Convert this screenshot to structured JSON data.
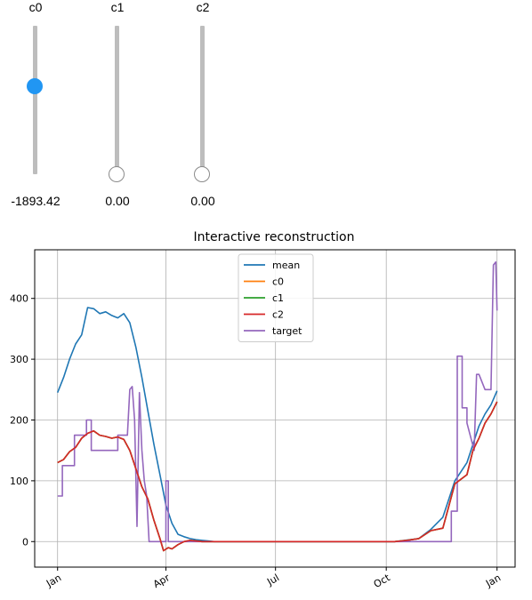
{
  "sliders": [
    {
      "name": "c0",
      "value_text": "-1893.42",
      "level": 0.59
    },
    {
      "name": "c1",
      "value_text": "0.00",
      "level": 0.0
    },
    {
      "name": "c2",
      "value_text": "0.00",
      "level": 0.0
    }
  ],
  "colors": {
    "mean": "#1f77b4",
    "c0": "#ff7f0e",
    "c1": "#2ca02c",
    "c2": "#d62728",
    "target": "#9467bd",
    "grid": "#b0b0b0",
    "knob_active": "#2196f3"
  },
  "chart_data": {
    "type": "line",
    "title": "Interactive reconstruction",
    "xlabel": "",
    "ylabel": "",
    "x_tick_labels": [
      "Jan",
      "Apr",
      "Jul",
      "Oct",
      "Jan"
    ],
    "x_tick_positions": [
      0,
      90,
      181,
      273,
      365
    ],
    "xlim": [
      -19,
      380
    ],
    "ylim": [
      -42,
      480
    ],
    "y_ticks": [
      0,
      100,
      200,
      300,
      400
    ],
    "grid": true,
    "legend_position": "top-center",
    "series": [
      {
        "name": "mean",
        "x": [
          0,
          5,
          10,
          15,
          20,
          25,
          30,
          35,
          40,
          45,
          50,
          55,
          60,
          65,
          70,
          75,
          80,
          85,
          90,
          95,
          100,
          105,
          110,
          115,
          120,
          125,
          130,
          180,
          280,
          300,
          310,
          320,
          330,
          340,
          350,
          355,
          360,
          365
        ],
        "y": [
          245,
          270,
          300,
          325,
          340,
          385,
          383,
          375,
          378,
          372,
          368,
          375,
          360,
          320,
          270,
          215,
          160,
          110,
          60,
          30,
          12,
          8,
          5,
          3,
          2,
          1,
          0,
          0,
          0,
          5,
          20,
          40,
          100,
          130,
          190,
          210,
          225,
          248
        ]
      },
      {
        "name": "c0",
        "x": [
          0,
          5,
          10,
          15,
          20,
          25,
          30,
          35,
          40,
          45,
          50,
          55,
          60,
          65,
          70,
          75,
          80,
          85,
          88,
          92,
          95,
          100,
          105,
          110,
          120,
          130,
          180,
          280,
          290,
          300,
          310,
          320,
          330,
          340,
          345,
          350,
          355,
          360,
          365
        ],
        "y": [
          130,
          135,
          148,
          155,
          170,
          178,
          182,
          175,
          173,
          170,
          172,
          168,
          150,
          120,
          90,
          70,
          35,
          5,
          -15,
          -10,
          -12,
          -5,
          0,
          2,
          0,
          0,
          0,
          0,
          2,
          5,
          18,
          22,
          95,
          110,
          150,
          170,
          195,
          210,
          230
        ]
      },
      {
        "name": "c1",
        "x": [
          0,
          5,
          10,
          15,
          20,
          25,
          30,
          35,
          40,
          45,
          50,
          55,
          60,
          65,
          70,
          75,
          80,
          85,
          88,
          92,
          95,
          100,
          105,
          110,
          120,
          130,
          180,
          280,
          290,
          300,
          310,
          320,
          330,
          340,
          345,
          350,
          355,
          360,
          365
        ],
        "y": [
          130,
          135,
          148,
          155,
          170,
          178,
          182,
          175,
          173,
          170,
          172,
          168,
          150,
          120,
          90,
          70,
          35,
          5,
          -15,
          -10,
          -12,
          -5,
          0,
          2,
          0,
          0,
          0,
          0,
          2,
          5,
          18,
          22,
          95,
          110,
          150,
          170,
          195,
          210,
          230
        ]
      },
      {
        "name": "c2",
        "x": [
          0,
          5,
          10,
          15,
          20,
          25,
          30,
          35,
          40,
          45,
          50,
          55,
          60,
          65,
          70,
          75,
          80,
          85,
          88,
          92,
          95,
          100,
          105,
          110,
          120,
          130,
          180,
          280,
          290,
          300,
          310,
          320,
          330,
          340,
          345,
          350,
          355,
          360,
          365
        ],
        "y": [
          130,
          135,
          148,
          155,
          170,
          178,
          182,
          175,
          173,
          170,
          172,
          168,
          150,
          120,
          90,
          70,
          35,
          5,
          -15,
          -10,
          -12,
          -5,
          0,
          2,
          0,
          0,
          0,
          0,
          2,
          5,
          18,
          22,
          95,
          110,
          150,
          170,
          195,
          210,
          230
        ]
      },
      {
        "name": "target",
        "x": [
          0,
          4,
          4,
          14,
          14,
          24,
          24,
          28,
          28,
          30,
          30,
          40,
          40,
          50,
          50,
          58,
          60,
          62,
          64,
          66,
          68,
          70,
          72,
          74,
          76,
          76,
          90,
          90,
          92,
          92,
          130,
          300,
          327,
          327,
          332,
          332,
          336,
          336,
          340,
          340,
          346,
          348,
          350,
          355,
          360,
          362,
          364,
          365
        ],
        "y": [
          75,
          75,
          125,
          125,
          175,
          175,
          200,
          200,
          150,
          150,
          150,
          150,
          150,
          150,
          175,
          175,
          250,
          255,
          200,
          25,
          245,
          150,
          100,
          75,
          0,
          0,
          0,
          100,
          100,
          0,
          0,
          0,
          0,
          50,
          50,
          305,
          305,
          220,
          220,
          195,
          150,
          275,
          275,
          250,
          250,
          455,
          460,
          380
        ]
      }
    ]
  }
}
